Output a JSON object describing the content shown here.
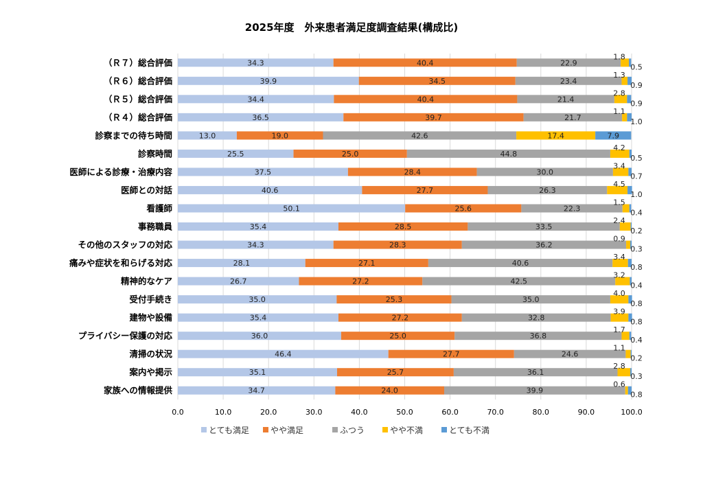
{
  "chart_data": {
    "type": "bar",
    "orientation": "horizontal",
    "stacked": true,
    "title": "2025年度　外来患者満足度調査結果(構成比)",
    "categories": [
      "（Ｒ７）総合評価",
      "（Ｒ６）総合評価",
      "（Ｒ５）総合評価",
      "（Ｒ４）総合評価",
      "診察までの待ち時間",
      "診察時間",
      "医師による診療・治療内容",
      "医師との対話",
      "看護師",
      "事務職員",
      "その他のスタッフの対応",
      "痛みや症状を和らげる対応",
      "精神的なケア",
      "受付手続き",
      "建物や設備",
      "プライバシー保護の対応",
      "清掃の状況",
      "案内や掲示",
      "家族への情報提供"
    ],
    "series": [
      {
        "name": "とても満足",
        "color": "#b4c7e7",
        "values": [
          34.3,
          39.9,
          34.4,
          36.5,
          13.0,
          25.5,
          37.5,
          40.6,
          50.1,
          35.4,
          34.3,
          28.1,
          26.7,
          35.0,
          35.4,
          36.0,
          46.4,
          35.1,
          34.7
        ]
      },
      {
        "name": "やや満足",
        "color": "#ed7d31",
        "values": [
          40.4,
          34.5,
          40.4,
          39.7,
          19.0,
          25.0,
          28.4,
          27.7,
          25.6,
          28.5,
          28.3,
          27.1,
          27.2,
          25.3,
          27.2,
          25.0,
          27.7,
          25.7,
          24.0
        ]
      },
      {
        "name": "ふつう",
        "color": "#a5a5a5",
        "values": [
          22.9,
          23.4,
          21.4,
          21.7,
          42.6,
          44.8,
          30.0,
          26.3,
          22.3,
          33.5,
          36.2,
          40.6,
          42.5,
          35.0,
          32.8,
          36.8,
          24.6,
          36.1,
          39.9
        ]
      },
      {
        "name": "やや不満",
        "color": "#ffc000",
        "values": [
          1.8,
          1.3,
          2.8,
          1.1,
          17.4,
          4.2,
          3.4,
          4.5,
          1.5,
          2.4,
          0.9,
          3.4,
          3.2,
          4.0,
          3.9,
          1.7,
          1.1,
          2.8,
          0.6
        ]
      },
      {
        "name": "とても不満",
        "color": "#5b9bd5",
        "values": [
          0.5,
          0.9,
          0.9,
          1.0,
          7.9,
          0.5,
          0.7,
          1.0,
          0.4,
          0.2,
          0.3,
          0.8,
          0.4,
          0.8,
          0.8,
          0.4,
          0.2,
          0.3,
          0.8
        ]
      }
    ],
    "xlim": [
      0,
      100
    ],
    "xticks": [
      "0.0",
      "10.0",
      "20.0",
      "30.0",
      "40.0",
      "50.0",
      "60.0",
      "70.0",
      "80.0",
      "90.0",
      "100.0"
    ],
    "grid": true,
    "legend": "bottom"
  }
}
